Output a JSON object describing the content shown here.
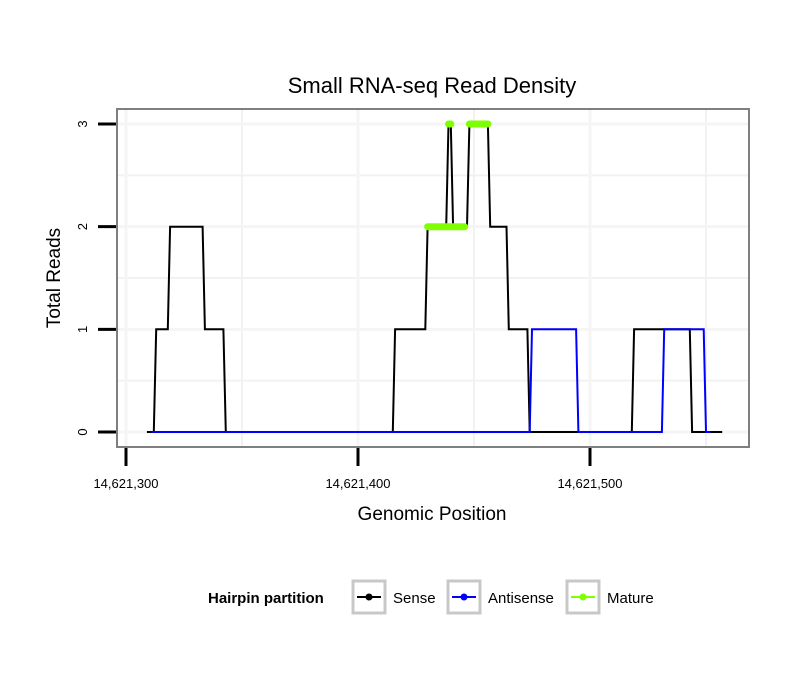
{
  "chart_data": {
    "type": "line",
    "title": "Small RNA-seq Read Density",
    "xlabel": "Genomic Position",
    "ylabel": "Total Reads",
    "xlim": [
      14621300,
      14621560
    ],
    "ylim": [
      0,
      3
    ],
    "xticks": [
      14621300,
      14621400,
      14621500
    ],
    "xtick_labels": [
      "14,621,300",
      "14,621,400",
      "14,621,500"
    ],
    "yticks": [
      0,
      1,
      2,
      3
    ],
    "ytick_labels": [
      "0",
      "1",
      "2",
      "3"
    ],
    "grid": true,
    "legend": {
      "title": "Hairpin partition",
      "position": "bottom",
      "entries": [
        "Sense",
        "Antisense",
        "Mature"
      ]
    },
    "series": [
      {
        "name": "Sense",
        "color": "#000000",
        "x": [
          14621309,
          14621312,
          14621313,
          14621318,
          14621319,
          14621333,
          14621334,
          14621342,
          14621343,
          14621415,
          14621416,
          14621429,
          14621430,
          14621438,
          14621439,
          14621440,
          14621441,
          14621447,
          14621448,
          14621456,
          14621457,
          14621464,
          14621465,
          14621473,
          14621474,
          14621518,
          14621519,
          14621543,
          14621544,
          14621557
        ],
        "values": [
          0,
          0,
          1,
          1,
          2,
          2,
          1,
          1,
          0,
          0,
          1,
          1,
          2,
          2,
          3,
          3,
          2,
          2,
          3,
          3,
          2,
          2,
          1,
          1,
          0,
          0,
          1,
          1,
          0,
          0
        ]
      },
      {
        "name": "Antisense",
        "color": "#0000ff",
        "x": [
          14621311,
          14621474,
          14621475,
          14621479,
          14621480,
          14621494,
          14621495,
          14621517,
          14621518,
          14621531,
          14621532,
          14621549,
          14621550,
          14621552
        ],
        "values": [
          0,
          0,
          1,
          1,
          1,
          1,
          0,
          0,
          0,
          0,
          1,
          1,
          0,
          0
        ]
      },
      {
        "name": "Mature",
        "color": "#7fff00",
        "segments": [
          {
            "x": [
              14621430,
              14621446
            ],
            "values": [
              2,
              2
            ]
          },
          {
            "x": [
              14621439,
              14621440
            ],
            "values": [
              3,
              3
            ]
          },
          {
            "x": [
              14621448,
              14621456
            ],
            "values": [
              3,
              3
            ]
          }
        ]
      }
    ]
  }
}
